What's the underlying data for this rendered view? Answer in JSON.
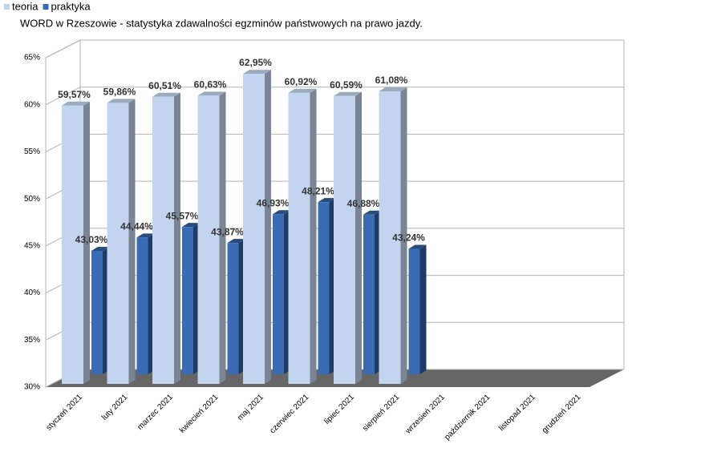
{
  "chart_data": {
    "type": "bar3d",
    "title": "WORD w Rzeszowie - statystyka zdawalności egzminów państwowych na prawo jazdy.",
    "categories": [
      "styczeń 2021",
      "luty 2021",
      "marzec 2021",
      "kwiecień 2021",
      "maj 2021",
      "czerwiec 2021",
      "lipiec 2021",
      "sierpień 2021",
      "wrzesień 2021",
      "październik 2021",
      "listopad 2021",
      "grudzień 2021"
    ],
    "series": [
      {
        "name": "teoria",
        "color": "#c3d5ee",
        "values": [
          59.57,
          59.86,
          60.51,
          60.63,
          62.95,
          60.92,
          60.59,
          61.08,
          null,
          null,
          null,
          null
        ],
        "value_labels": [
          "59,57%",
          "59,86%",
          "60,51%",
          "60,63%",
          "62,95%",
          "60,92%",
          "60,59%",
          "61,08%",
          null,
          null,
          null,
          null
        ]
      },
      {
        "name": "praktyka",
        "color": "#3a6cb5",
        "values": [
          43.03,
          44.44,
          45.57,
          43.87,
          46.93,
          48.21,
          46.88,
          43.24,
          null,
          null,
          null,
          null
        ],
        "value_labels": [
          "43,03%",
          "44,44%",
          "45,57%",
          "43,87%",
          "46,93%",
          "48,21%",
          "46,88%",
          "43,24%",
          null,
          null,
          null,
          null
        ]
      }
    ],
    "ylim": [
      30,
      65
    ],
    "yticks": [
      {
        "value": 30,
        "label": "30%"
      },
      {
        "value": 35,
        "label": "35%"
      },
      {
        "value": 40,
        "label": "40%"
      },
      {
        "value": 45,
        "label": "45%"
      },
      {
        "value": 50,
        "label": "50%"
      },
      {
        "value": 55,
        "label": "55%"
      },
      {
        "value": 60,
        "label": "60%"
      },
      {
        "value": 65,
        "label": "65%"
      }
    ],
    "grid": true,
    "legend": "top-left"
  }
}
